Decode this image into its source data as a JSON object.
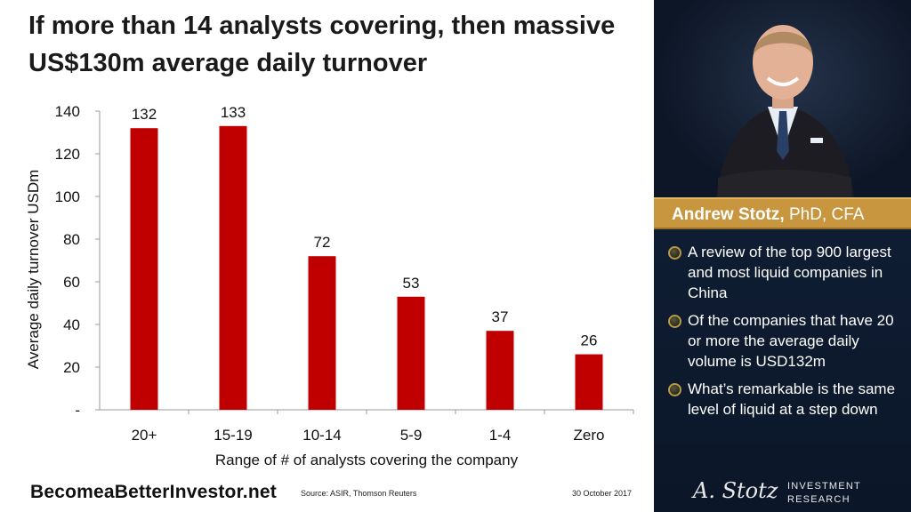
{
  "title_line1": "If more than 14 analysts covering, then massive",
  "title_line2": "US$130m average daily turnover",
  "chart_data": {
    "type": "bar",
    "categories": [
      "20+",
      "15-19",
      "10-14",
      "5-9",
      "1-4",
      "Zero"
    ],
    "values": [
      132,
      133,
      72,
      53,
      37,
      26
    ],
    "data_labels": [
      "132",
      "133",
      "72",
      "53",
      "37",
      "26"
    ],
    "xlabel": "Range of # of analysts covering the company",
    "ylabel": "Average daily turnover USDm",
    "ylim": [
      0,
      140
    ],
    "y_ticks": [
      0,
      20,
      40,
      60,
      80,
      100,
      120,
      140
    ],
    "y_tick_labels": [
      "-",
      "20",
      "40",
      "60",
      "80",
      "100",
      "120",
      "140"
    ],
    "bar_color": "#c00000",
    "grid": false
  },
  "footer": {
    "brand": "BecomeaBetterInvestor.net",
    "source": "Source: ASIR, Thomson Reuters",
    "date": "30 October 2017"
  },
  "sidebar": {
    "name": "Andrew Stotz,",
    "credentials": " PhD, CFA",
    "name_bar_color": "#c8963e",
    "bullets": [
      "A review of the top 900 largest and most liquid companies in China",
      "Of the companies that have 20 or more the average daily volume is USD132m",
      "What’s remarkable is the same level of liquid at a step down"
    ],
    "signature": "A. Stotz",
    "logo_line1": "INVESTMENT",
    "logo_line2": "RESEARCH"
  }
}
